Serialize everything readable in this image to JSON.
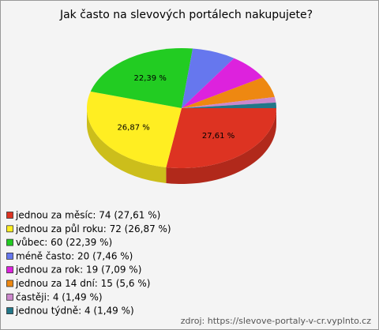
{
  "chart_data": {
    "type": "pie",
    "title": "Jak často na slevových portálech nakupujete?",
    "categories": [
      "jednou za měsíc: 74 (27,61 %)",
      "jednou za půl roku: 72 (26,87 %)",
      "vůbec: 60 (22,39 %)",
      "méně často: 20 (7,46 %)",
      "jednou za rok: 19 (7,09 %)",
      "jednou za 14 dní: 15 (5,6 %)",
      "častěji: 4 (1,49 %)",
      "jednou týdně: 4 (1,49 %)"
    ],
    "values": [
      27.61,
      26.87,
      22.39,
      7.46,
      7.09,
      5.6,
      1.49,
      1.49
    ],
    "value_labels": [
      "27,61 %",
      "26,87 %",
      "22,39 %",
      null,
      null,
      null,
      null,
      null
    ],
    "colors": [
      "#dd3322",
      "#ffee22",
      "#22cc22",
      "#6677ee",
      "#dd22dd",
      "#ee8811",
      "#cc88cc",
      "#227788"
    ],
    "source": "zdroj: https://slevove-portaly-v-cr.vyplnto.cz"
  }
}
